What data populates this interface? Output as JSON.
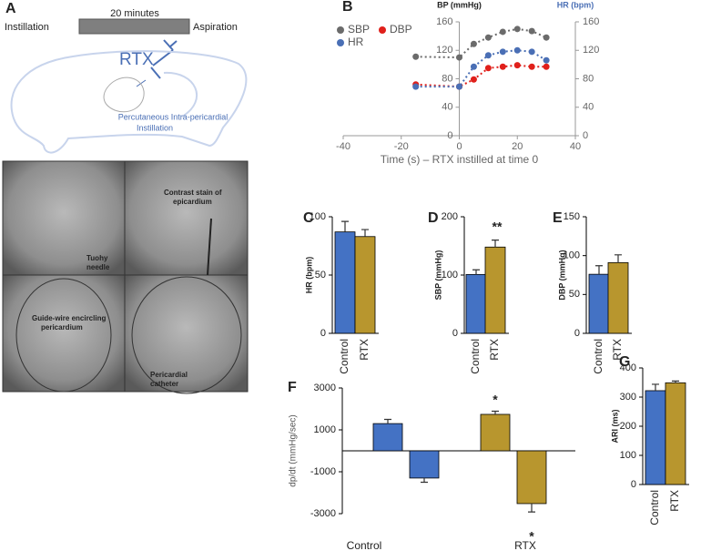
{
  "panel_a": {
    "label": "A",
    "time_label": "20 minutes",
    "start_label": "Instillation",
    "end_label": "Aspiration",
    "drug": "RTX",
    "caption": [
      "Percutaneous Intra-pericardial",
      "Instillation"
    ],
    "images": [
      [
        "Tuohy",
        "needle"
      ],
      [
        "Contrast stain of",
        "epicardium"
      ],
      [
        "Guide-wire encircling",
        "pericardium"
      ],
      [
        "Pericardial",
        "catheter"
      ]
    ]
  },
  "chart_data": [
    {
      "type": "line",
      "label": "B",
      "ylabel": "BP (mmHg)",
      "y2label": "HR (bpm)",
      "xlabel": "Time (s) – RTX instilled at time 0",
      "x": [
        -15,
        0,
        5,
        10,
        15,
        20,
        25,
        30
      ],
      "series": [
        {
          "name": "SBP",
          "color": "#6b6b6b",
          "values": [
            111,
            110,
            129,
            138,
            146,
            150,
            147,
            138
          ]
        },
        {
          "name": "DBP",
          "color": "#e0201b",
          "values": [
            72,
            69,
            79,
            95,
            97,
            99,
            97,
            97
          ]
        },
        {
          "name": "HR",
          "color": "#4a6fb5",
          "axis": "y2",
          "values": [
            69,
            69,
            97,
            113,
            118,
            120,
            118,
            106
          ]
        }
      ],
      "xlim": [
        -40,
        40
      ],
      "xticks": [
        -40,
        -20,
        0,
        20,
        40
      ],
      "ylim": [
        0,
        160
      ],
      "yticks": [
        0,
        40,
        80,
        120,
        160
      ],
      "y2lim": [
        0,
        160
      ],
      "y2ticks": [
        0,
        40,
        80,
        120,
        160
      ],
      "legend": "upper left"
    },
    {
      "type": "bar",
      "label": "C",
      "ylabel": "HR (bpm)",
      "categories": [
        "Control",
        "RTX"
      ],
      "colors": [
        "#4472c4",
        "#b8962e"
      ],
      "values": [
        87,
        83
      ],
      "errors": [
        9,
        6
      ],
      "ylim": [
        0,
        100
      ],
      "yticks": [
        0,
        50,
        100
      ]
    },
    {
      "type": "bar",
      "label": "D",
      "ylabel": "SBP (mmHg)",
      "categories": [
        "Control",
        "RTX"
      ],
      "colors": [
        "#4472c4",
        "#b8962e"
      ],
      "values": [
        101,
        148
      ],
      "errors": [
        8,
        12
      ],
      "ylim": [
        0,
        200
      ],
      "yticks": [
        0,
        100,
        200
      ],
      "annotations": [
        "**"
      ]
    },
    {
      "type": "bar",
      "label": "E",
      "ylabel": "DBP (mmHg)",
      "categories": [
        "Control",
        "RTX"
      ],
      "colors": [
        "#4472c4",
        "#b8962e"
      ],
      "values": [
        76,
        91
      ],
      "errors": [
        11,
        10
      ],
      "ylim": [
        0,
        150
      ],
      "yticks": [
        0,
        50,
        100,
        150
      ]
    },
    {
      "type": "bar",
      "label": "F",
      "ylabel": "dp/dt (mmHg/sec)",
      "categories": [
        "Control",
        "RTX"
      ],
      "colors": [
        "#4472c4",
        "#b8962e"
      ],
      "series": [
        {
          "values": [
            1300,
            1740
          ],
          "errors": [
            200,
            150
          ]
        },
        {
          "values": [
            -1300,
            -2520
          ],
          "errors": [
            200,
            400
          ]
        }
      ],
      "ylim": [
        -3000,
        3000
      ],
      "yticks": [
        -3000,
        -1000,
        1000,
        3000
      ],
      "annotations": [
        "*",
        "*"
      ]
    },
    {
      "type": "bar",
      "label": "G",
      "ylabel": "ARI (ms)",
      "categories": [
        "Control",
        "RTX"
      ],
      "colors": [
        "#4472c4",
        "#b8962e"
      ],
      "values": [
        322,
        349
      ],
      "errors": [
        22,
        6
      ],
      "ylim": [
        0,
        400
      ],
      "yticks": [
        0,
        100,
        200,
        300,
        400
      ]
    }
  ]
}
